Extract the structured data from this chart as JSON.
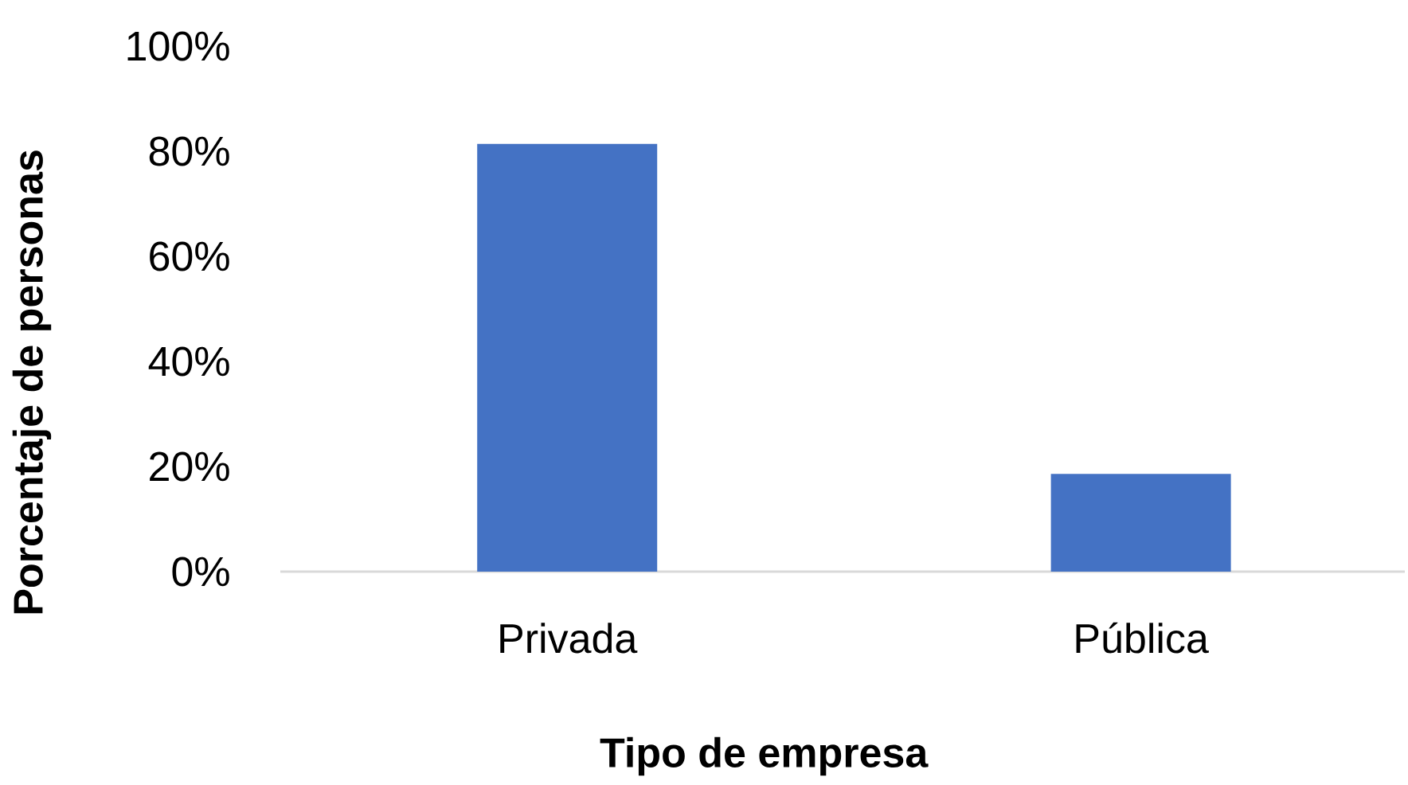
{
  "chart_data": {
    "type": "bar",
    "xlabel": "Tipo de empresa",
    "ylabel": "Porcentaje de personas",
    "categories": [
      "Privada",
      "Pública"
    ],
    "values": [
      81.4,
      18.6
    ],
    "color": "#4472c4",
    "ylim": [
      0,
      100
    ],
    "yticks": [
      {
        "value": 0,
        "label": "0%"
      },
      {
        "value": 20,
        "label": "20%"
      },
      {
        "value": 40,
        "label": "40%"
      },
      {
        "value": 60,
        "label": "60%"
      },
      {
        "value": 80,
        "label": "80%"
      },
      {
        "value": 100,
        "label": "100%"
      }
    ]
  }
}
